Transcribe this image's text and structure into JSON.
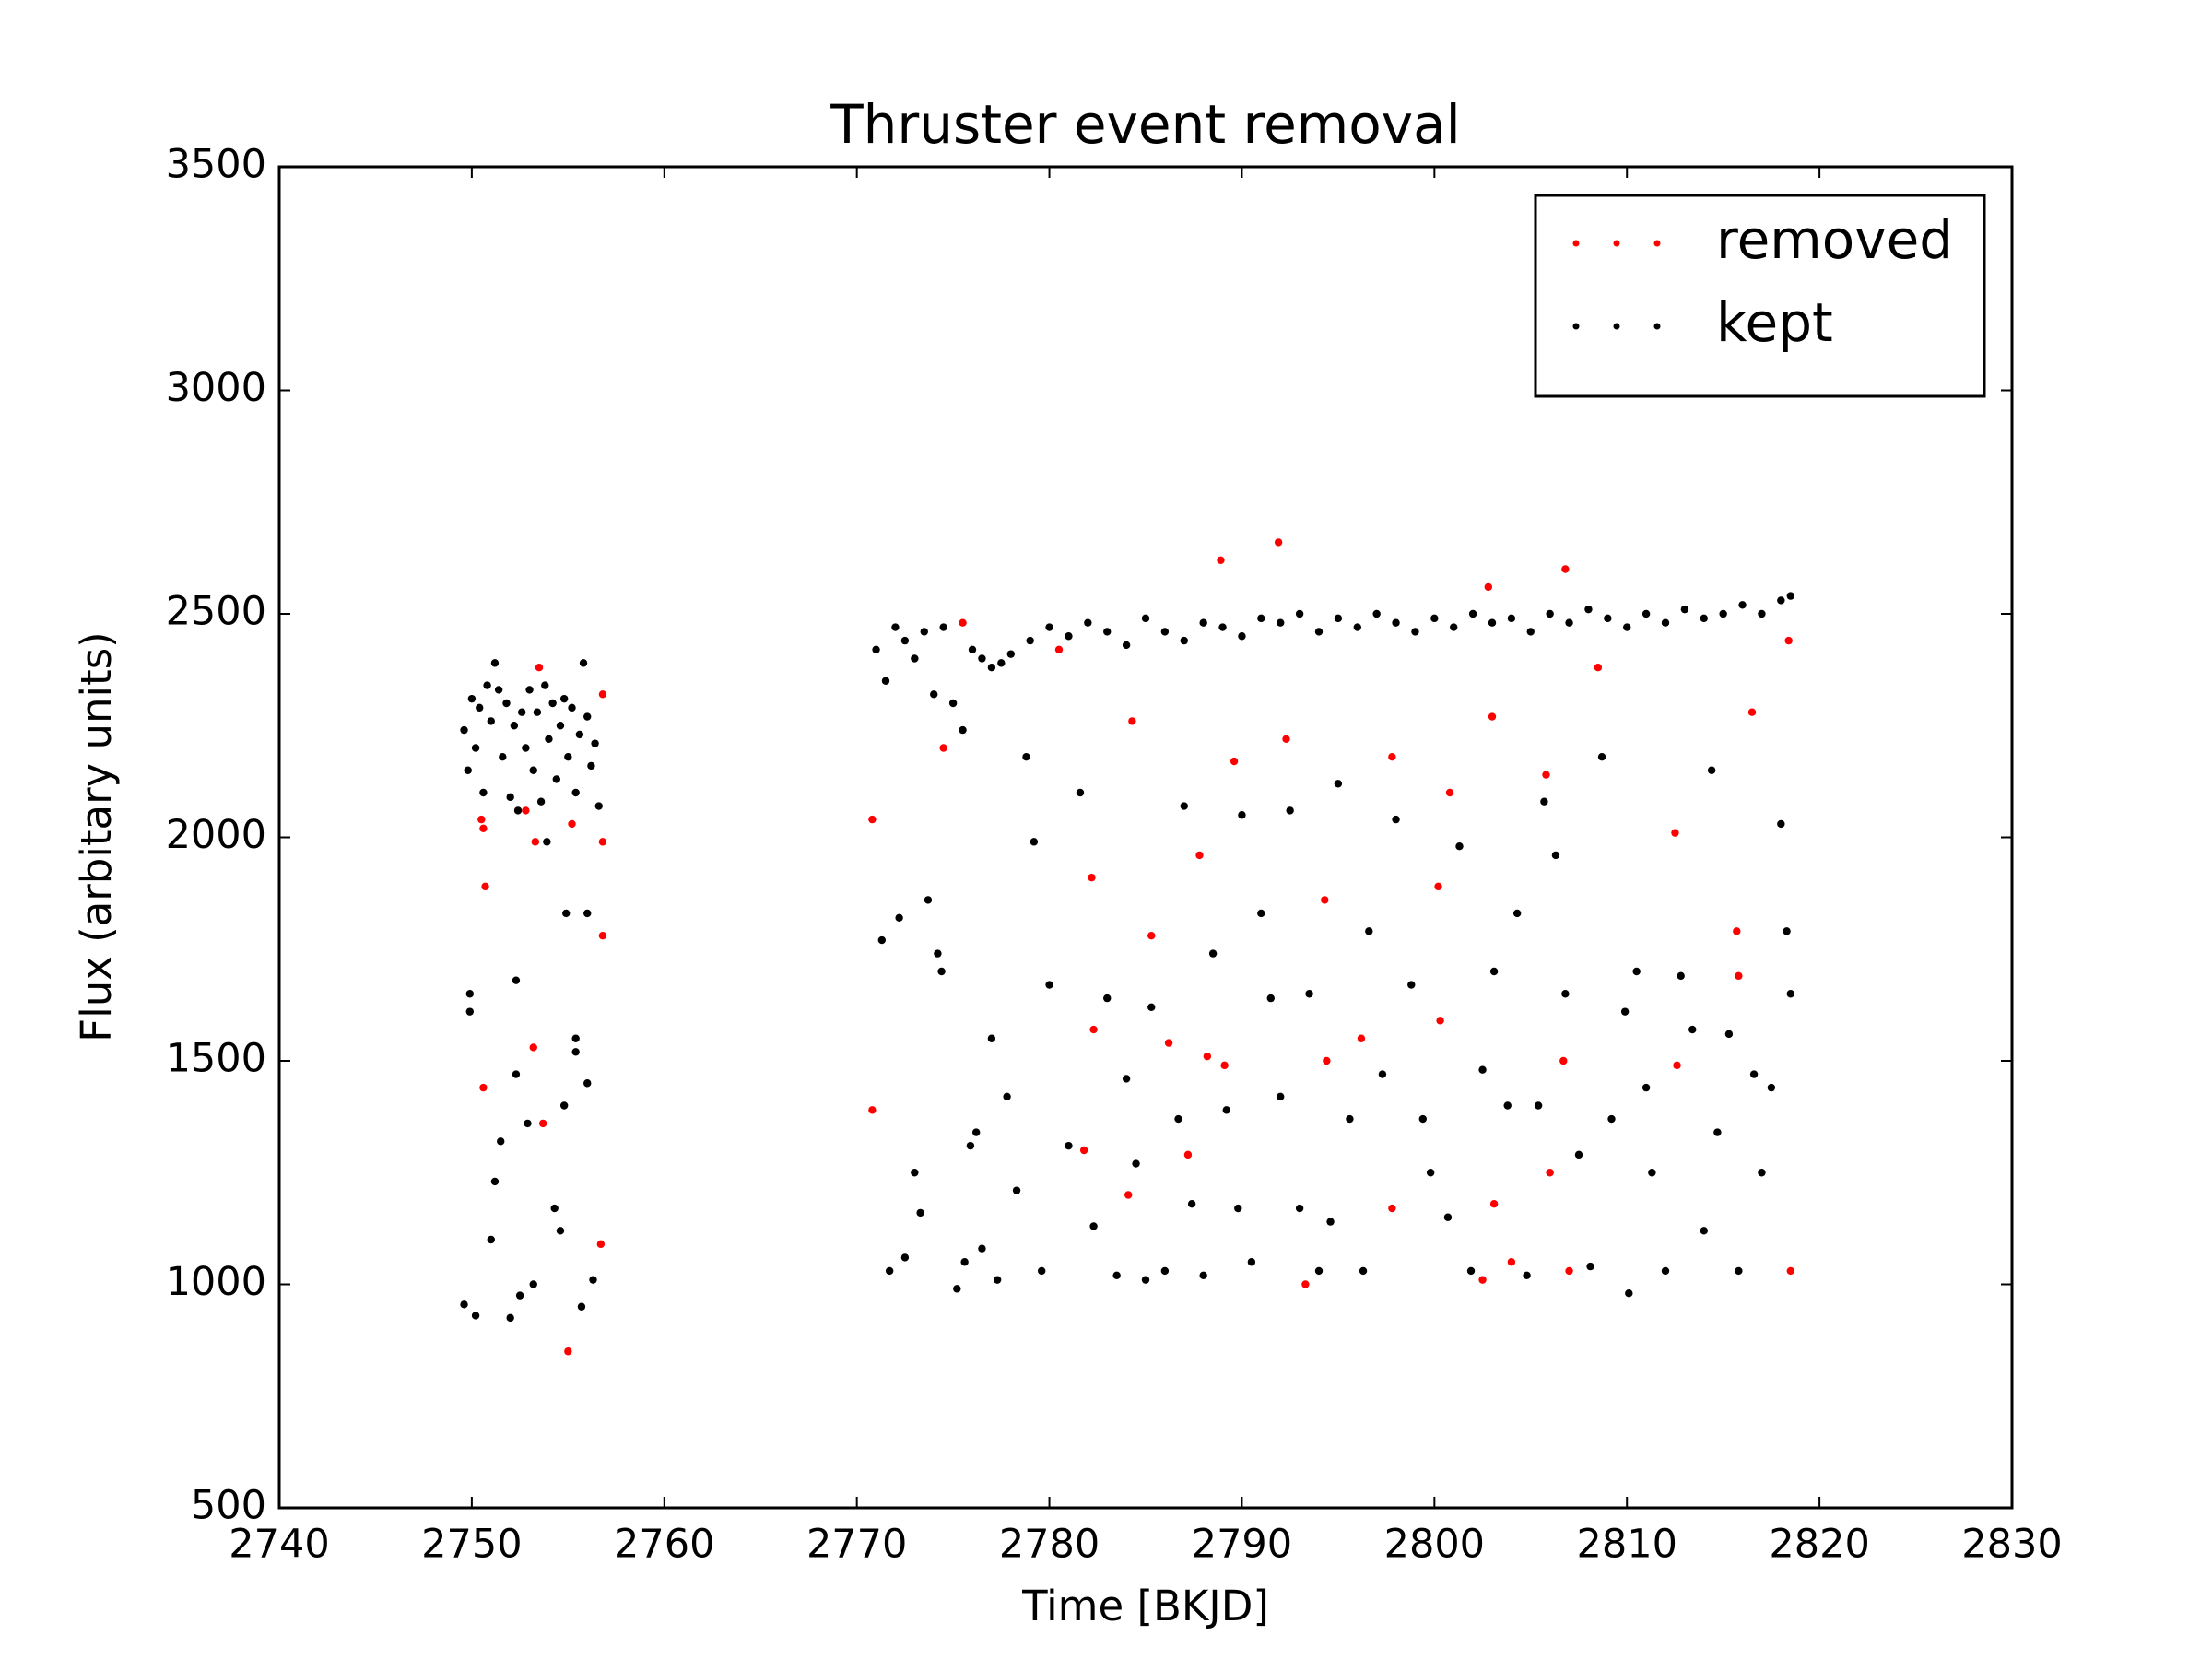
{
  "chart_data": {
    "type": "scatter",
    "title": "Thruster event removal",
    "x_label": "Time [BKJD]",
    "y_label": "Flux (arbitary units)",
    "xlim": [
      2740,
      2830
    ],
    "xticks": [
      2740,
      2750,
      2760,
      2770,
      2780,
      2790,
      2800,
      2810,
      2820,
      2830
    ],
    "ylim": [
      500,
      3500
    ],
    "yticks": [
      500,
      1000,
      1500,
      2000,
      2500,
      3000,
      3500
    ],
    "legend": "upper right",
    "series": [
      {
        "name": "removed",
        "color": "#ff0000",
        "x": [
          2750.5,
          2750.6,
          2750.7,
          2750.6,
          2752.8,
          2753.2,
          2753.3,
          2753.7,
          2753.5,
          2755.0,
          2755.2,
          2756.8,
          2756.8,
          2756.7,
          2756.8,
          2770.8,
          2770.8,
          2774.5,
          2775.5,
          2780.5,
          2781.8,
          2782.2,
          2782.3,
          2784.1,
          2784.3,
          2785.3,
          2786.2,
          2787.2,
          2787.8,
          2788.2,
          2788.9,
          2789.1,
          2789.6,
          2791.9,
          2792.3,
          2793.3,
          2794.3,
          2794.4,
          2796.2,
          2797.8,
          2797.8,
          2800.2,
          2800.3,
          2800.8,
          2802.5,
          2803.1,
          2803.0,
          2802.8,
          2804.0,
          2805.8,
          2806.0,
          2806.7,
          2806.8,
          2807.0,
          2808.5,
          2812.5,
          2812.6,
          2815.7,
          2815.8,
          2816.5,
          2818.5,
          2818.4
        ],
        "values": [
          2040,
          2020,
          1890,
          1440,
          2060,
          1530,
          1990,
          1360,
          2380,
          850,
          2030,
          1990,
          1780,
          1090,
          2320,
          2040,
          1390,
          2200,
          2480,
          2420,
          1300,
          1910,
          1570,
          1200,
          2260,
          1780,
          1540,
          1290,
          1960,
          1510,
          2620,
          1490,
          2170,
          2660,
          2220,
          1000,
          1860,
          1500,
          1550,
          2180,
          1170,
          1890,
          1590,
          2100,
          1010,
          1180,
          2270,
          2560,
          1050,
          2140,
          1250,
          1500,
          2600,
          1030,
          2380,
          2010,
          1490,
          1790,
          1690,
          2280,
          1030,
          2440
        ]
      },
      {
        "name": "kept",
        "color": "#000000",
        "x": [
          2749.6,
          2749.8,
          2750.0,
          2750.2,
          2750.4,
          2750.6,
          2750.8,
          2751.0,
          2751.2,
          2751.4,
          2751.6,
          2751.8,
          2752.0,
          2752.2,
          2752.4,
          2752.6,
          2752.8,
          2753.0,
          2753.2,
          2753.4,
          2753.6,
          2753.8,
          2754.0,
          2754.2,
          2754.4,
          2754.6,
          2754.8,
          2755.0,
          2755.2,
          2755.4,
          2755.6,
          2755.8,
          2756.0,
          2756.2,
          2756.4,
          2756.6,
          2749.9,
          2749.9,
          2749.6,
          2750.2,
          2751.0,
          2751.2,
          2751.5,
          2752.0,
          2752.3,
          2752.3,
          2752.5,
          2752.9,
          2753.2,
          2753.9,
          2754.3,
          2754.6,
          2754.9,
          2754.8,
          2755.4,
          2755.4,
          2755.7,
          2756.0,
          2756.0,
          2756.3,
          2771.0,
          2771.5,
          2772.0,
          2772.5,
          2773.0,
          2773.5,
          2774.0,
          2774.5,
          2775.0,
          2775.5,
          2776.0,
          2776.5,
          2777.0,
          2777.5,
          2778.0,
          2779.0,
          2780.0,
          2781.0,
          2782.0,
          2783.0,
          2784.0,
          2785.0,
          2786.0,
          2787.0,
          2788.0,
          2789.0,
          2790.0,
          2791.0,
          2792.0,
          2793.0,
          2794.0,
          2795.0,
          2796.0,
          2797.0,
          2798.0,
          2799.0,
          2800.0,
          2801.0,
          2802.0,
          2803.0,
          2804.0,
          2805.0,
          2806.0,
          2807.0,
          2808.0,
          2809.0,
          2810.0,
          2811.0,
          2812.0,
          2813.0,
          2814.0,
          2815.0,
          2816.0,
          2817.0,
          2818.0,
          2818.5,
          2771.3,
          2771.7,
          2772.2,
          2772.5,
          2773.0,
          2773.3,
          2773.7,
          2774.2,
          2774.4,
          2775.2,
          2775.6,
          2775.9,
          2776.2,
          2776.5,
          2777.0,
          2777.3,
          2777.8,
          2778.3,
          2778.8,
          2779.2,
          2779.6,
          2780.0,
          2781.0,
          2781.6,
          2782.3,
          2783.0,
          2783.5,
          2784.0,
          2784.5,
          2785.0,
          2785.3,
          2786.0,
          2786.7,
          2787.0,
          2787.4,
          2788.0,
          2788.5,
          2789.2,
          2789.8,
          2790.0,
          2790.5,
          2791.0,
          2791.5,
          2792.0,
          2792.5,
          2793.0,
          2793.5,
          2794.0,
          2794.6,
          2795.0,
          2795.6,
          2796.3,
          2796.6,
          2797.3,
          2798.0,
          2798.8,
          2799.4,
          2799.8,
          2800.7,
          2801.3,
          2801.9,
          2802.5,
          2803.1,
          2803.8,
          2804.3,
          2804.8,
          2805.4,
          2805.7,
          2806.3,
          2806.8,
          2807.5,
          2808.1,
          2808.7,
          2809.2,
          2809.9,
          2810.1,
          2810.5,
          2811.0,
          2811.3,
          2812.0,
          2812.8,
          2813.4,
          2814.0,
          2814.4,
          2814.7,
          2815.3,
          2815.8,
          2816.6,
          2817.0,
          2817.5,
          2818.0,
          2818.3,
          2818.5
        ],
        "values": [
          2240,
          2150,
          2310,
          2200,
          2290,
          2100,
          2340,
          2260,
          2390,
          2330,
          2180,
          2300,
          2090,
          2250,
          2060,
          2280,
          2200,
          2330,
          2150,
          2280,
          2080,
          2340,
          2220,
          2300,
          2130,
          2250,
          2310,
          2180,
          2290,
          2100,
          2230,
          2390,
          2270,
          2160,
          2210,
          2070,
          1650,
          1610,
          955,
          930,
          1100,
          1230,
          1320,
          925,
          1680,
          1470,
          975,
          1360,
          1000,
          1990,
          1170,
          1120,
          1830,
          1400,
          1550,
          1520,
          950,
          1830,
          1450,
          1010,
          2420,
          2350,
          2470,
          2440,
          2400,
          2460,
          2320,
          2470,
          2300,
          2240,
          2420,
          2400,
          2380,
          2390,
          2410,
          2440,
          2470,
          2450,
          2480,
          2460,
          2430,
          2490,
          2460,
          2440,
          2480,
          2470,
          2450,
          2490,
          2480,
          2500,
          2460,
          2490,
          2470,
          2500,
          2480,
          2460,
          2490,
          2470,
          2500,
          2480,
          2490,
          2460,
          2500,
          2480,
          2510,
          2490,
          2470,
          2500,
          2480,
          2510,
          2490,
          2500,
          2520,
          2500,
          2530,
          2540,
          1770,
          1030,
          1820,
          1060,
          1250,
          1160,
          1860,
          1740,
          1700,
          990,
          1050,
          1310,
          1340,
          1080,
          1550,
          1010,
          1420,
          1210,
          2180,
          1990,
          1030,
          1670,
          1310,
          2100,
          1130,
          1640,
          1020,
          1460,
          1270,
          1010,
          1620,
          1030,
          1370,
          2070,
          1180,
          1020,
          1740,
          1390,
          1170,
          2050,
          1050,
          1830,
          1640,
          1420,
          2060,
          1170,
          1650,
          1030,
          1140,
          2120,
          1370,
          1030,
          1790,
          1470,
          2040,
          1670,
          1370,
          1250,
          1150,
          1980,
          1030,
          1480,
          1700,
          1400,
          1830,
          1020,
          1400,
          2080,
          1960,
          1650,
          1290,
          1040,
          2180,
          1370,
          1610,
          980,
          1700,
          1440,
          1250,
          1030,
          1690,
          1570,
          1120,
          2150,
          1340,
          1560,
          1030,
          1470,
          1250,
          1440,
          2030,
          1790,
          1650
        ]
      }
    ]
  }
}
